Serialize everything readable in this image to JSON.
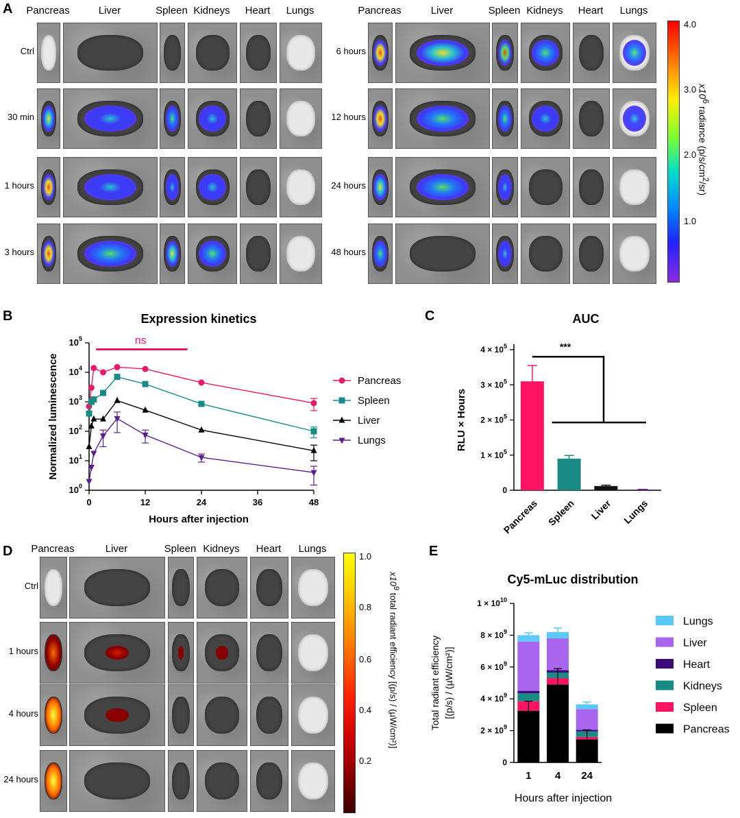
{
  "panels": {
    "a": "A",
    "b": "B",
    "c": "C",
    "d": "D",
    "e": "E"
  },
  "panel_a": {
    "organs": [
      "Pancreas",
      "Liver",
      "Spleen",
      "Kidneys",
      "Heart",
      "Lungs"
    ],
    "left_rows": [
      "Ctrl",
      "30 min",
      "1 hours",
      "3 hours"
    ],
    "right_rows": [
      "6 hours",
      "12 hours",
      "24 hours",
      "48 hours"
    ],
    "colorbar": {
      "ticks": [
        "4.0",
        "3.0",
        "2.0",
        "1.0"
      ],
      "label_prefix": "x10",
      "label_sup": "6",
      "label_rest": " radiance (p/s/cm",
      "label_sup2": "2",
      "label_end": "/sr)"
    }
  },
  "panel_d": {
    "organs": [
      "Pancreas",
      "Liver",
      "Spleen",
      "Kidneys",
      "Heart",
      "Lungs"
    ],
    "rows": [
      "Ctrl",
      "1 hours",
      "4 hours",
      "24 hours"
    ],
    "colorbar": {
      "ticks": [
        "1.0",
        "0.8",
        "0.6",
        "0.4",
        "0.2"
      ],
      "label_prefix": "x10",
      "label_sup": "9",
      "label_rest": " total radiant efficiency [(p/s) / (µW/cm²)]"
    }
  },
  "chart_data": [
    {
      "type": "line",
      "title": "Expression kinetics",
      "xlabel": "Hours after injection",
      "ylabel": "Normalized luminescence",
      "yscale": "log",
      "ylim": [
        1,
        100000
      ],
      "xlim": [
        0,
        48
      ],
      "xticks": [
        "0",
        "12",
        "24",
        "36",
        "48"
      ],
      "ytick_base": "10",
      "ytick_exps": [
        "0",
        "1",
        "2",
        "3",
        "4",
        "5"
      ],
      "annotation": "ns",
      "colors": {
        "Pancreas": "#e8196b",
        "Spleen": "#1a8a84",
        "Liver": "#000000",
        "Lungs": "#5a1f8c"
      },
      "series": [
        {
          "name": "Pancreas",
          "marker": "circle",
          "x": [
            0,
            0.5,
            1,
            3,
            6,
            12,
            24,
            48
          ],
          "y": [
            700,
            3000,
            14000,
            10000,
            15000,
            13000,
            4500,
            900
          ],
          "err": [
            0,
            0,
            0,
            0,
            0,
            0,
            0,
            400
          ]
        },
        {
          "name": "Spleen",
          "marker": "square",
          "x": [
            0,
            0.5,
            1,
            3,
            6,
            12,
            24,
            48
          ],
          "y": [
            400,
            1000,
            1200,
            2000,
            7000,
            4000,
            850,
            100
          ],
          "err": [
            0,
            0,
            0,
            0,
            0,
            0,
            0,
            40
          ]
        },
        {
          "name": "Liver",
          "marker": "triangle-up",
          "x": [
            0,
            0.5,
            1,
            3,
            6,
            12,
            24,
            48
          ],
          "y": [
            30,
            150,
            260,
            260,
            1100,
            520,
            110,
            22
          ],
          "err": [
            0,
            0,
            0,
            0,
            0,
            0,
            0,
            12
          ]
        },
        {
          "name": "Lungs",
          "marker": "triangle-down",
          "x": [
            0,
            0.5,
            1,
            3,
            6,
            12,
            24,
            48
          ],
          "y": [
            2,
            6,
            18,
            70,
            270,
            75,
            13,
            4
          ],
          "err": [
            0,
            0,
            0,
            40,
            180,
            35,
            4,
            2.5
          ]
        }
      ]
    },
    {
      "type": "bar",
      "title": "AUC",
      "ylabel": "RLU × Hours",
      "categories": [
        "Pancreas",
        "Spleen",
        "Liver",
        "Lungs"
      ],
      "values": [
        310000,
        90000,
        12000,
        2000
      ],
      "errors": [
        45000,
        9000,
        2500,
        500
      ],
      "colors": [
        "#ff1464",
        "#1a8a84",
        "#111111",
        "#5a1f8c"
      ],
      "ylim": [
        0,
        400000
      ],
      "ytick_labels": [
        "0",
        "1 × 10",
        "2 × 10",
        "3 × 10",
        "4 × 10"
      ],
      "ytick_sup": "5",
      "annotation": "***"
    },
    {
      "type": "bar",
      "stacked": true,
      "title": "Cy5-mLuc distribution",
      "xlabel": "Hours after injection",
      "ylabel_line1": "Total radiant efficiency",
      "ylabel_line2": "[(p/s) / (µW/cm²)]",
      "categories": [
        "1",
        "4",
        "24"
      ],
      "ylim": [
        0,
        10000000000
      ],
      "ytick_labels": [
        "0",
        "2 × 10",
        "4 × 10",
        "6 × 10",
        "8 × 10",
        "1 × 10"
      ],
      "ytick_sups": [
        "",
        "9",
        "9",
        "9",
        "9",
        "10"
      ],
      "series": [
        {
          "name": "Pancreas",
          "color": "#000000",
          "values": [
            3250000000,
            4900000000,
            1450000000
          ]
        },
        {
          "name": "Spleen",
          "color": "#ff1464",
          "values": [
            600000000,
            400000000,
            150000000
          ]
        },
        {
          "name": "Kidneys",
          "color": "#1a8a84",
          "values": [
            500000000,
            350000000,
            350000000
          ]
        },
        {
          "name": "Heart",
          "color": "#3b0a7a",
          "values": [
            150000000,
            150000000,
            100000000
          ]
        },
        {
          "name": "Liver",
          "color": "#a865ee",
          "values": [
            3100000000,
            2000000000,
            1300000000
          ]
        },
        {
          "name": "Lungs",
          "color": "#5bc8f5",
          "values": [
            400000000,
            400000000,
            300000000
          ]
        }
      ],
      "errors": [
        600000000,
        1000000000,
        600000000
      ],
      "legend_order": [
        "Lungs",
        "Liver",
        "Heart",
        "Kidneys",
        "Spleen",
        "Pancreas"
      ]
    }
  ]
}
